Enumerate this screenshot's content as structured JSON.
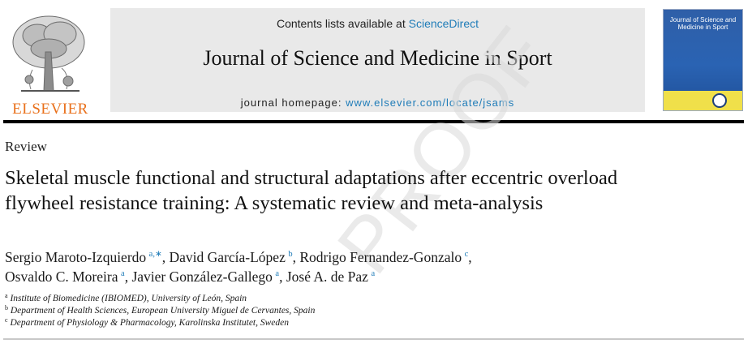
{
  "publisher": {
    "name": "ELSEVIER"
  },
  "masthead": {
    "contents_prefix": "Contents lists available at ",
    "contents_link": "ScienceDirect",
    "journal_title": "Journal of Science and Medicine in Sport",
    "homepage_prefix": "journal homepage: ",
    "homepage_link": "www.elsevier.com/locate/jsams"
  },
  "cover": {
    "title": "Journal of Science and Medicine in Sport"
  },
  "article": {
    "type": "Review",
    "title": "Skeletal muscle functional and structural adaptations after eccentric overload flywheel resistance training: A systematic review and meta-analysis",
    "authors": [
      {
        "name": "Sergio Maroto-Izquierdo",
        "sup": "a,∗",
        "sep": ", "
      },
      {
        "name": "David García-López",
        "sup": "b",
        "sep": ", "
      },
      {
        "name": "Rodrigo Fernandez-Gonzalo",
        "sup": "c",
        "sep": ", "
      },
      {
        "name": "Osvaldo C. Moreira",
        "sup": "a",
        "sep": ", "
      },
      {
        "name": "Javier González-Gallego",
        "sup": "a",
        "sep": ", "
      },
      {
        "name": "José A. de Paz",
        "sup": "a",
        "sep": ""
      }
    ],
    "affiliations": [
      {
        "mark": "a",
        "text": "Institute of Biomedicine (IBIOMED), University of León, Spain"
      },
      {
        "mark": "b",
        "text": "Department of Health Sciences, European University Miguel de Cervantes, Spain"
      },
      {
        "mark": "c",
        "text": "Department of Physiology & Pharmacology, Karolinska Institutet, Sweden"
      }
    ],
    "watermark": "PROOF"
  },
  "colors": {
    "link": "#1f7cb8",
    "elsevier_orange": "#e9711c",
    "masthead_bg": "#e9e9e9"
  }
}
